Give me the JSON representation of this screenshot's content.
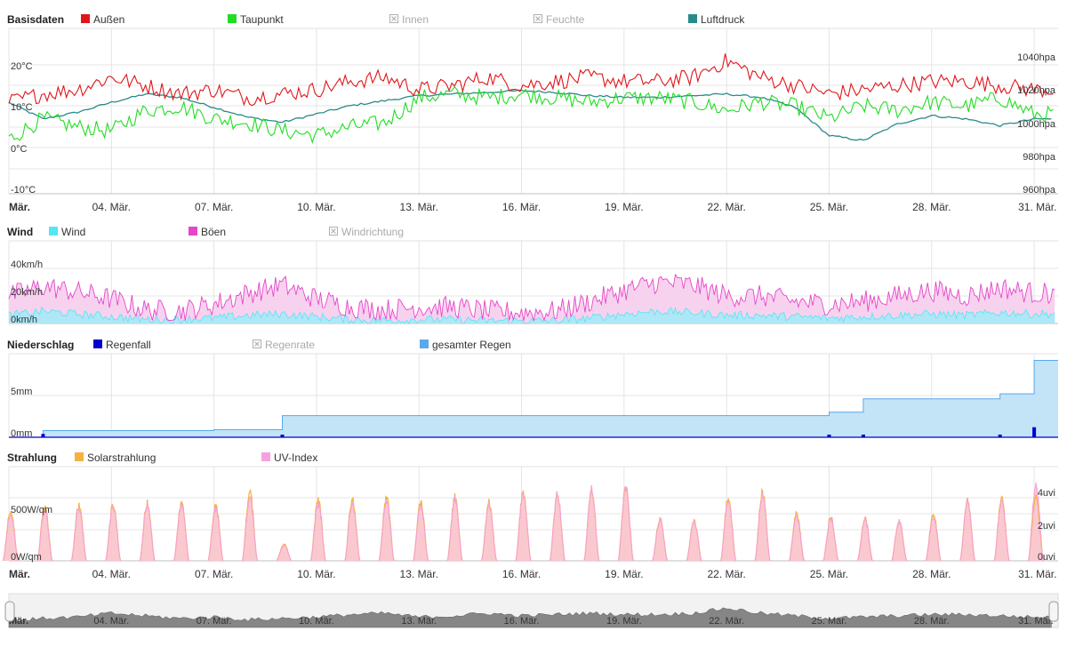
{
  "colors": {
    "aussen": "#e0161b",
    "taupunkt": "#22dd22",
    "luftdruck": "#2a8a8a",
    "wind": "#55e6f4",
    "wind_fill": "#aee7f6",
    "boeen": "#e547c8",
    "boeen_fill": "#f7d2ef",
    "regenfall": "#0000cc",
    "gesamter_regen": "#5aa9e8",
    "gesamter_regen_fill": "#c3e3f7",
    "solar": "#f5b240",
    "uv": "#f7a0df",
    "disabled": "#b0b0b0",
    "grid": "#e4e4e4",
    "navigator": "#808080"
  },
  "x_axis": {
    "month_label": "Mär.",
    "dates": [
      "04. Mär.",
      "07. Mär.",
      "10. Mär.",
      "13. Mär.",
      "16. Mär.",
      "19. Mär.",
      "22. Mär.",
      "25. Mär.",
      "28. Mär.",
      "31. Mär."
    ]
  },
  "chart_data": [
    {
      "type": "line",
      "title": "Basisdaten",
      "legend": [
        {
          "name": "Außen",
          "enabled": true
        },
        {
          "name": "Taupunkt",
          "enabled": true
        },
        {
          "name": "Innen",
          "enabled": false
        },
        {
          "name": "Feuchte",
          "enabled": false
        },
        {
          "name": "Luftdruck",
          "enabled": true
        }
      ],
      "y_left": {
        "ticks": [
          "20°C",
          "10°C",
          "0°C",
          "-10°C"
        ],
        "ylim": [
          -10,
          30
        ],
        "unit": "°C"
      },
      "y_right": {
        "ticks": [
          "1040hpa",
          "1020hpa",
          "1000hpa",
          "980hpa",
          "960hpa"
        ],
        "ylim": [
          960,
          1040
        ],
        "unit": "hPa"
      },
      "x": [
        1,
        2,
        3,
        4,
        5,
        6,
        7,
        8,
        9,
        10,
        11,
        12,
        13,
        14,
        15,
        16,
        17,
        18,
        19,
        20,
        21,
        22,
        23,
        24,
        25,
        26,
        27,
        28,
        29,
        30,
        31
      ],
      "series": [
        {
          "name": "Außen",
          "values": [
            11,
            13,
            14,
            17,
            15,
            13,
            14,
            12,
            13,
            14,
            16,
            17,
            14,
            15,
            17,
            15,
            16,
            17,
            16,
            16,
            17,
            21,
            17,
            15,
            13,
            14,
            15,
            16,
            16,
            15,
            14
          ]
        },
        {
          "name": "Taupunkt",
          "values": [
            2,
            7,
            5,
            4,
            9,
            10,
            7,
            6,
            4,
            3,
            5,
            6,
            12,
            13,
            12,
            13,
            12,
            11,
            12,
            12,
            11,
            9,
            11,
            10,
            7,
            10,
            9,
            11,
            10,
            12,
            8
          ]
        },
        {
          "name": "Luftdruck",
          "values": [
            1015,
            1005,
            1009,
            1015,
            1020,
            1018,
            1012,
            1006,
            1003,
            1008,
            1013,
            1016,
            1019,
            1020,
            1021,
            1022,
            1021,
            1019,
            1018,
            1018,
            1019,
            1020,
            1018,
            1012,
            995,
            992,
            1002,
            1007,
            1005,
            1001,
            1005
          ]
        }
      ]
    },
    {
      "type": "area",
      "title": "Wind",
      "legend": [
        {
          "name": "Wind",
          "enabled": true
        },
        {
          "name": "Böen",
          "enabled": true
        },
        {
          "name": "Windrichtung",
          "enabled": false
        }
      ],
      "y_left": {
        "ticks": [
          "40km/h",
          "20km/h",
          "0km/h"
        ],
        "ylim": [
          0,
          40
        ],
        "unit": "km/h"
      },
      "x": [
        1,
        2,
        3,
        4,
        5,
        6,
        7,
        8,
        9,
        10,
        11,
        12,
        13,
        14,
        15,
        16,
        17,
        18,
        19,
        20,
        21,
        22,
        23,
        24,
        25,
        26,
        27,
        28,
        29,
        30,
        31
      ],
      "series": [
        {
          "name": "Wind",
          "values": [
            6,
            9,
            7,
            5,
            3,
            3,
            4,
            6,
            7,
            5,
            3,
            2,
            3,
            3,
            2,
            2,
            2,
            4,
            7,
            9,
            8,
            6,
            6,
            5,
            4,
            5,
            6,
            7,
            6,
            8,
            7
          ]
        },
        {
          "name": "Böen",
          "values": [
            20,
            27,
            23,
            18,
            10,
            9,
            14,
            22,
            28,
            18,
            12,
            10,
            12,
            12,
            9,
            8,
            9,
            16,
            24,
            30,
            28,
            20,
            20,
            16,
            14,
            16,
            20,
            24,
            20,
            26,
            22
          ]
        }
      ]
    },
    {
      "type": "area",
      "title": "Niederschlag",
      "legend": [
        {
          "name": "Regenfall",
          "enabled": true
        },
        {
          "name": "Regenrate",
          "enabled": false
        },
        {
          "name": "gesamter Regen",
          "enabled": true
        }
      ],
      "y_left": {
        "ticks": [
          "5mm",
          "0mm"
        ],
        "ylim": [
          0,
          10
        ],
        "unit": "mm"
      },
      "x": [
        1,
        2,
        3,
        4,
        5,
        6,
        7,
        8,
        9,
        10,
        11,
        12,
        13,
        14,
        15,
        16,
        17,
        18,
        19,
        20,
        21,
        22,
        23,
        24,
        25,
        26,
        27,
        28,
        29,
        30,
        31
      ],
      "series": [
        {
          "name": "gesamter Regen",
          "values": [
            0,
            0.8,
            0.8,
            0.8,
            0.8,
            0.8,
            0.9,
            0.9,
            2.6,
            2.6,
            2.6,
            2.6,
            2.6,
            2.6,
            2.6,
            2.6,
            2.6,
            2.6,
            2.6,
            2.6,
            2.6,
            2.6,
            2.6,
            2.6,
            3.0,
            4.6,
            4.6,
            4.6,
            4.6,
            5.2,
            9.2
          ]
        },
        {
          "name": "Regenfall",
          "values": [
            0,
            0.4,
            0,
            0,
            0,
            0,
            0,
            0,
            0.3,
            0,
            0,
            0,
            0,
            0,
            0,
            0,
            0,
            0,
            0,
            0,
            0,
            0,
            0,
            0,
            0.3,
            0.3,
            0,
            0,
            0,
            0.3,
            1.2
          ]
        }
      ]
    },
    {
      "type": "area",
      "title": "Strahlung",
      "legend": [
        {
          "name": "Solarstrahlung",
          "enabled": true
        },
        {
          "name": "UV-Index",
          "enabled": true
        }
      ],
      "y_left": {
        "ticks": [
          "500W/qm",
          "0W/qm"
        ],
        "ylim": [
          0,
          900
        ],
        "unit": "W/qm"
      },
      "y_right": {
        "ticks": [
          "4uvi",
          "2uvi",
          "0uvi"
        ],
        "ylim": [
          0,
          5
        ],
        "unit": "uvi"
      },
      "x": [
        1,
        2,
        3,
        4,
        5,
        6,
        7,
        8,
        9,
        10,
        11,
        12,
        13,
        14,
        15,
        16,
        17,
        18,
        19,
        20,
        21,
        22,
        23,
        24,
        25,
        26,
        27,
        28,
        29,
        30,
        31
      ],
      "series": [
        {
          "name": "Solarstrahlung",
          "values": [
            600,
            640,
            660,
            680,
            690,
            700,
            650,
            820,
            200,
            720,
            740,
            760,
            700,
            760,
            700,
            820,
            800,
            850,
            880,
            500,
            480,
            760,
            820,
            560,
            520,
            500,
            480,
            560,
            720,
            730,
            760
          ]
        },
        {
          "name": "UV-Index",
          "values": [
            3.0,
            3.2,
            3.3,
            3.5,
            3.6,
            3.6,
            3.3,
            4.0,
            1.0,
            3.6,
            3.7,
            3.8,
            3.5,
            3.9,
            3.6,
            4.3,
            4.3,
            4.6,
            4.8,
            2.6,
            2.5,
            3.9,
            4.2,
            2.8,
            2.7,
            2.6,
            2.6,
            2.8,
            3.8,
            3.7,
            4.8
          ]
        }
      ]
    }
  ]
}
